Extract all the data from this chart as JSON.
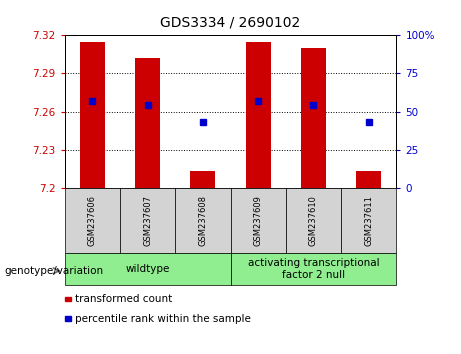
{
  "title": "GDS3334 / 2690102",
  "samples": [
    "GSM237606",
    "GSM237607",
    "GSM237608",
    "GSM237609",
    "GSM237610",
    "GSM237611"
  ],
  "bar_bottoms": [
    7.2,
    7.2,
    7.2,
    7.2,
    7.2,
    7.2
  ],
  "bar_tops": [
    7.315,
    7.302,
    7.213,
    7.315,
    7.31,
    7.213
  ],
  "percentile_values": [
    57,
    54,
    43,
    57,
    54,
    43
  ],
  "ylim_left": [
    7.2,
    7.32
  ],
  "ylim_right": [
    0,
    100
  ],
  "yticks_left": [
    7.2,
    7.23,
    7.26,
    7.29,
    7.32
  ],
  "yticks_right": [
    0,
    25,
    50,
    75,
    100
  ],
  "bar_color": "#cc0000",
  "square_color": "#0000cc",
  "group1_label": "wildtype",
  "group1_range": [
    0,
    2
  ],
  "group2_label": "activating transcriptional\nfactor 2 null",
  "group2_range": [
    3,
    5
  ],
  "group_color": "#90ee90",
  "sample_bg_color": "#d3d3d3",
  "legend_items": [
    {
      "label": "transformed count",
      "color": "#cc0000"
    },
    {
      "label": "percentile rank within the sample",
      "color": "#0000cc"
    }
  ],
  "background_color": "#ffffff",
  "tick_label_color_left": "#cc0000",
  "tick_label_color_right": "#0000cc",
  "title_fontsize": 10,
  "axis_fontsize": 7.5,
  "sample_fontsize": 6,
  "geno_fontsize": 7.5,
  "legend_fontsize": 7.5
}
